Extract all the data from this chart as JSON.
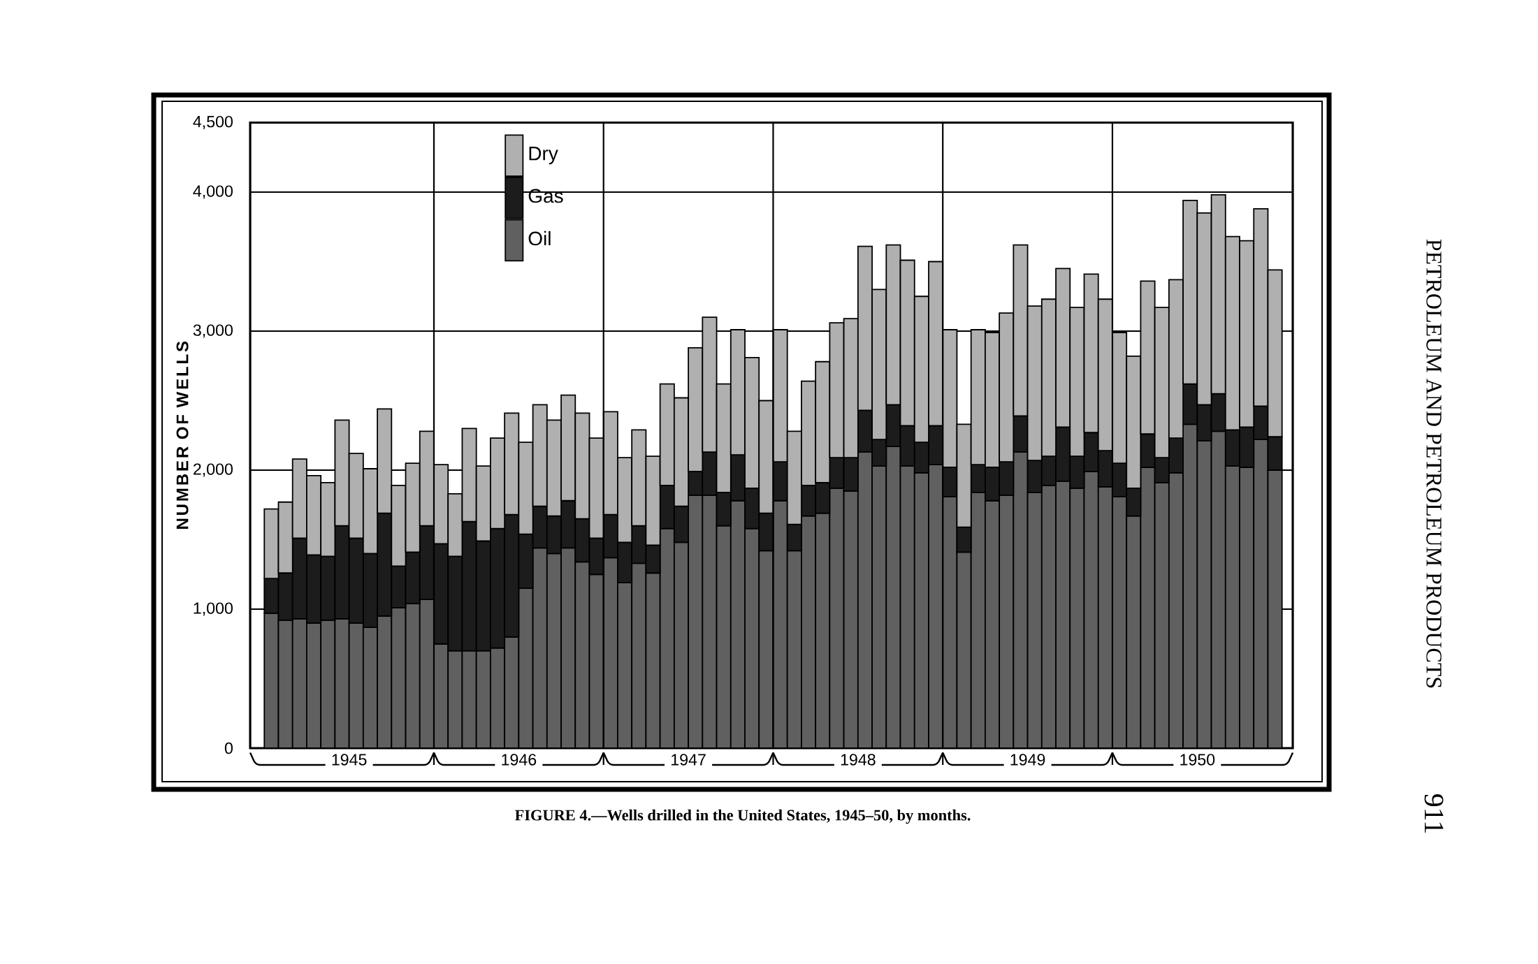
{
  "chart_data": {
    "type": "bar",
    "stacked": true,
    "ylabel": "NUMBER OF WELLS",
    "annotations": [
      "FIGURE 4.—Wells drilled in the United States, 1945–50, by months.",
      "PETROLEUM AND PETROLEUM PRODUCTS",
      "911"
    ],
    "x": [
      "1945-01",
      "1945-02",
      "1945-03",
      "1945-04",
      "1945-05",
      "1945-06",
      "1945-07",
      "1945-08",
      "1945-09",
      "1945-10",
      "1945-11",
      "1945-12",
      "1946-01",
      "1946-02",
      "1946-03",
      "1946-04",
      "1946-05",
      "1946-06",
      "1946-07",
      "1946-08",
      "1946-09",
      "1946-10",
      "1946-11",
      "1946-12",
      "1947-01",
      "1947-02",
      "1947-03",
      "1947-04",
      "1947-05",
      "1947-06",
      "1947-07",
      "1947-08",
      "1947-09",
      "1947-10",
      "1947-11",
      "1947-12",
      "1948-01",
      "1948-02",
      "1948-03",
      "1948-04",
      "1948-05",
      "1948-06",
      "1948-07",
      "1948-08",
      "1948-09",
      "1948-10",
      "1948-11",
      "1948-12",
      "1949-01",
      "1949-02",
      "1949-03",
      "1949-04",
      "1949-05",
      "1949-06",
      "1949-07",
      "1949-08",
      "1949-09",
      "1949-10",
      "1949-11",
      "1949-12",
      "1950-01",
      "1950-02",
      "1950-03",
      "1950-04",
      "1950-05",
      "1950-06",
      "1950-07",
      "1950-08",
      "1950-09",
      "1950-10",
      "1950-11",
      "1950-12"
    ],
    "series": [
      {
        "name": "Oil",
        "color": "#606060",
        "values": [
          970,
          920,
          930,
          900,
          920,
          930,
          900,
          870,
          950,
          1010,
          1040,
          1070,
          750,
          700,
          700,
          700,
          720,
          800,
          1150,
          1440,
          1400,
          1440,
          1340,
          1250,
          1370,
          1190,
          1330,
          1260,
          1580,
          1480,
          1820,
          1820,
          1600,
          1780,
          1580,
          1420,
          1780,
          1420,
          1670,
          1690,
          1870,
          1850,
          2130,
          2030,
          2170,
          2030,
          1980,
          2040,
          1810,
          1410,
          1840,
          1780,
          1820,
          2130,
          1840,
          1890,
          1920,
          1870,
          1990,
          1880,
          1810,
          1670,
          2020,
          1910,
          1980,
          2330,
          2210,
          2280,
          2030,
          2020,
          2220,
          2000
        ]
      },
      {
        "name": "Gas",
        "color": "#1c1c1c",
        "values": [
          250,
          340,
          580,
          490,
          460,
          670,
          610,
          530,
          740,
          300,
          370,
          530,
          720,
          680,
          930,
          790,
          860,
          880,
          390,
          300,
          270,
          340,
          310,
          260,
          310,
          290,
          270,
          200,
          310,
          260,
          170,
          310,
          240,
          330,
          290,
          270,
          280,
          190,
          220,
          220,
          220,
          240,
          300,
          190,
          300,
          290,
          220,
          280,
          210,
          180,
          200,
          240,
          240,
          260,
          230,
          210,
          390,
          230,
          280,
          260,
          240,
          200,
          240,
          180,
          250,
          290,
          260,
          270,
          260,
          290,
          240,
          240
        ]
      },
      {
        "name": "Dry",
        "color": "#b0b0b0",
        "values": [
          500,
          510,
          570,
          570,
          530,
          760,
          610,
          610,
          750,
          580,
          640,
          680,
          570,
          450,
          670,
          540,
          650,
          730,
          660,
          730,
          690,
          760,
          760,
          720,
          740,
          610,
          690,
          640,
          730,
          780,
          890,
          970,
          780,
          900,
          940,
          810,
          950,
          670,
          750,
          870,
          970,
          1000,
          1180,
          1080,
          1150,
          1190,
          1050,
          1180,
          990,
          740,
          970,
          970,
          1070,
          1230,
          1110,
          1130,
          1140,
          1070,
          1140,
          1090,
          940,
          950,
          1100,
          1080,
          1140,
          1320,
          1380,
          1430,
          1390,
          1340,
          1420,
          1200
        ]
      }
    ],
    "xlim": [
      "1944-11-16",
      "1951-01-09"
    ],
    "xticks": [
      {
        "value": "1945-06-16",
        "label": "1945"
      },
      {
        "value": "1946-06-16",
        "label": "1946"
      },
      {
        "value": "1947-06-16",
        "label": "1947"
      },
      {
        "value": "1948-06-16",
        "label": "1948"
      },
      {
        "value": "1949-06-16",
        "label": "1949"
      },
      {
        "value": "1950-06-16",
        "label": "1950"
      }
    ],
    "ylim": [
      0,
      4500
    ],
    "yticks": [
      0,
      {
        "value": 1000,
        "label": "1,000"
      },
      {
        "value": 2000,
        "label": "2,000"
      },
      {
        "value": 3000,
        "label": "3,000"
      },
      {
        "value": 4000,
        "label": "4,000"
      },
      {
        "value": 4500,
        "label": "4,500"
      }
    ],
    "ref_lines": [
      {
        "axis": "x",
        "value": "1945-12-16T12:00",
        "color": "#000000"
      },
      {
        "axis": "x",
        "value": "1946-12-16T12:00",
        "color": "#000000"
      },
      {
        "axis": "x",
        "value": "1947-12-16T12:00",
        "color": "#000000"
      },
      {
        "axis": "x",
        "value": "1948-12-16T12:00",
        "color": "#000000"
      },
      {
        "axis": "x",
        "value": "1949-12-16T12:00",
        "color": "#000000"
      }
    ],
    "grid": "y",
    "legend": "top left"
  }
}
